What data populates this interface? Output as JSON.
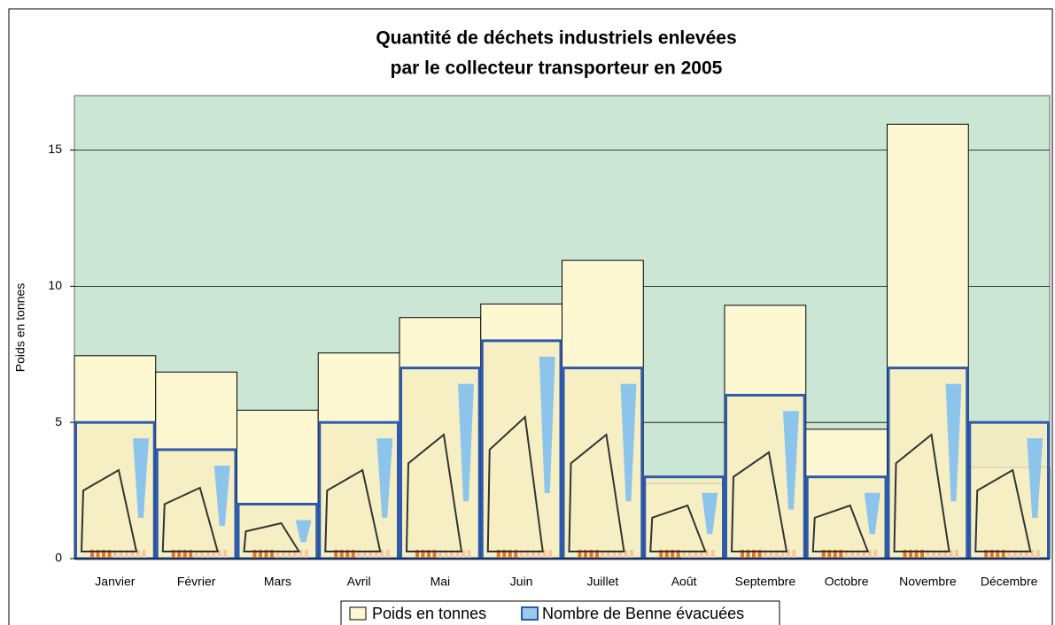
{
  "chart_data": {
    "type": "bar",
    "title": [
      "Quantité de déchets industriels enlevées",
      "par le collecteur transporteur en 2005"
    ],
    "y_label": "Poids en tonnes",
    "categories": [
      "Janvier",
      "Février",
      "Mars",
      "Avril",
      "Mai",
      "Juin",
      "Juillet",
      "Août",
      "Septembre",
      "Octobre",
      "Novembre",
      "Décembre"
    ],
    "series": [
      {
        "name": "Poids en tonnes",
        "color": "#fdf8d2",
        "values": [
          7.45,
          6.85,
          5.45,
          7.55,
          8.85,
          9.35,
          10.95,
          2.75,
          9.3,
          4.75,
          15.95,
          3.35
        ]
      },
      {
        "name": "Nombre de Benne évacuées",
        "color": "#2e5aac",
        "values": [
          5,
          4,
          2,
          5,
          7,
          8,
          7,
          3,
          6,
          3,
          7,
          5
        ]
      }
    ],
    "ylim": [
      0,
      17
    ],
    "yticks": [
      0,
      5,
      10,
      15
    ],
    "grid": true,
    "legend": "bottom"
  }
}
